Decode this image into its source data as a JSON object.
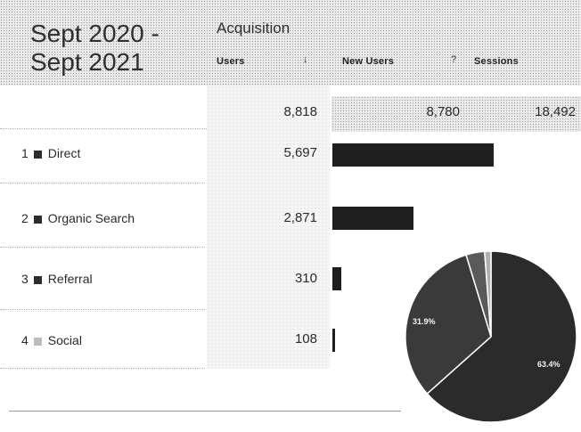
{
  "title": {
    "line1": "Sept 2020 -",
    "line2": "Sept 2021"
  },
  "section": "Acquisition",
  "columns": {
    "users": "Users",
    "new_users": "New Users",
    "sessions": "Sessions"
  },
  "totals": {
    "users": "8,818",
    "new_users": "8,780",
    "sessions": "18,492"
  },
  "rows": [
    {
      "rank": "1",
      "channel": "Direct",
      "users": "5,697",
      "users_value": 5697
    },
    {
      "rank": "2",
      "channel": "Organic Search",
      "users": "2,871",
      "users_value": 2871
    },
    {
      "rank": "3",
      "channel": "Referral",
      "users": "310",
      "users_value": 310
    },
    {
      "rank": "4",
      "channel": "Social",
      "users": "108",
      "users_value": 108
    }
  ],
  "bar_max": 8818,
  "pie": {
    "labels": {
      "direct": "63.4%",
      "organic": "31.9%"
    },
    "shares": [
      63.4,
      31.9,
      3.5,
      1.2
    ],
    "colors": [
      "#2b2b2b",
      "#3a3a3a",
      "#5a5a5a",
      "#b0b0b0"
    ]
  },
  "colors": {
    "bar": "#1f1f1f",
    "text": "#2a2a2a"
  }
}
